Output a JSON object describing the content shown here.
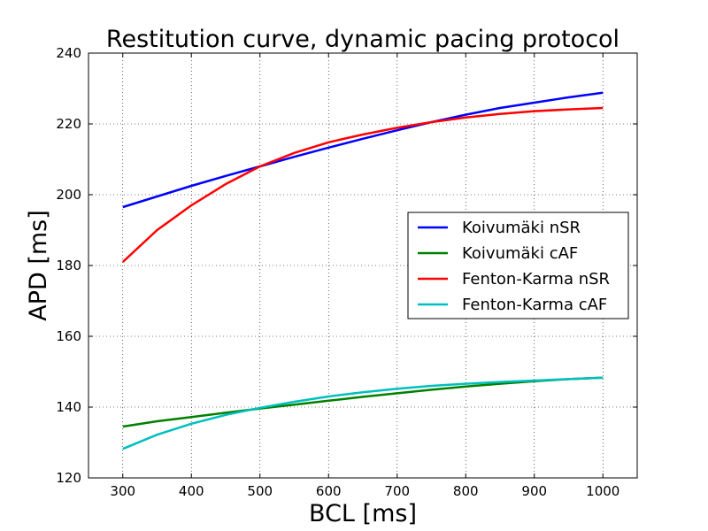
{
  "chart_data": {
    "type": "line",
    "title": "Restitution curve, dynamic pacing protocol",
    "xlabel": "BCL [ms]",
    "ylabel": "APD [ms]",
    "xlim": [
      250,
      1050
    ],
    "ylim": [
      120,
      240
    ],
    "xticks": [
      300,
      400,
      500,
      600,
      700,
      800,
      900,
      1000
    ],
    "yticks": [
      120,
      140,
      160,
      180,
      200,
      220,
      240
    ],
    "grid": true,
    "legend_position": "center-right",
    "x": [
      300,
      350,
      400,
      450,
      500,
      550,
      600,
      650,
      700,
      750,
      800,
      850,
      900,
      950,
      1000
    ],
    "series": [
      {
        "name": "Koivumäki nSR",
        "color": "#0000ff",
        "values": [
          196.5,
          199.5,
          202.5,
          205.3,
          208.0,
          210.7,
          213.3,
          215.8,
          218.2,
          220.5,
          222.6,
          224.5,
          226.0,
          227.5,
          228.8
        ]
      },
      {
        "name": "Koivumäki cAF",
        "color": "#008000",
        "values": [
          134.5,
          136.0,
          137.2,
          138.4,
          139.6,
          140.7,
          141.8,
          142.9,
          143.9,
          144.9,
          145.8,
          146.6,
          147.3,
          147.9,
          148.3
        ]
      },
      {
        "name": "Fenton-Karma nSR",
        "color": "#ff0000",
        "values": [
          181.0,
          190.0,
          197.0,
          203.0,
          208.0,
          211.8,
          214.8,
          217.0,
          218.9,
          220.5,
          221.8,
          222.8,
          223.6,
          224.1,
          224.5
        ]
      },
      {
        "name": "Fenton-Karma cAF",
        "color": "#00bfbf",
        "values": [
          128.2,
          132.2,
          135.3,
          137.8,
          139.8,
          141.5,
          143.0,
          144.2,
          145.2,
          146.0,
          146.6,
          147.1,
          147.5,
          147.9,
          148.3
        ]
      }
    ]
  }
}
